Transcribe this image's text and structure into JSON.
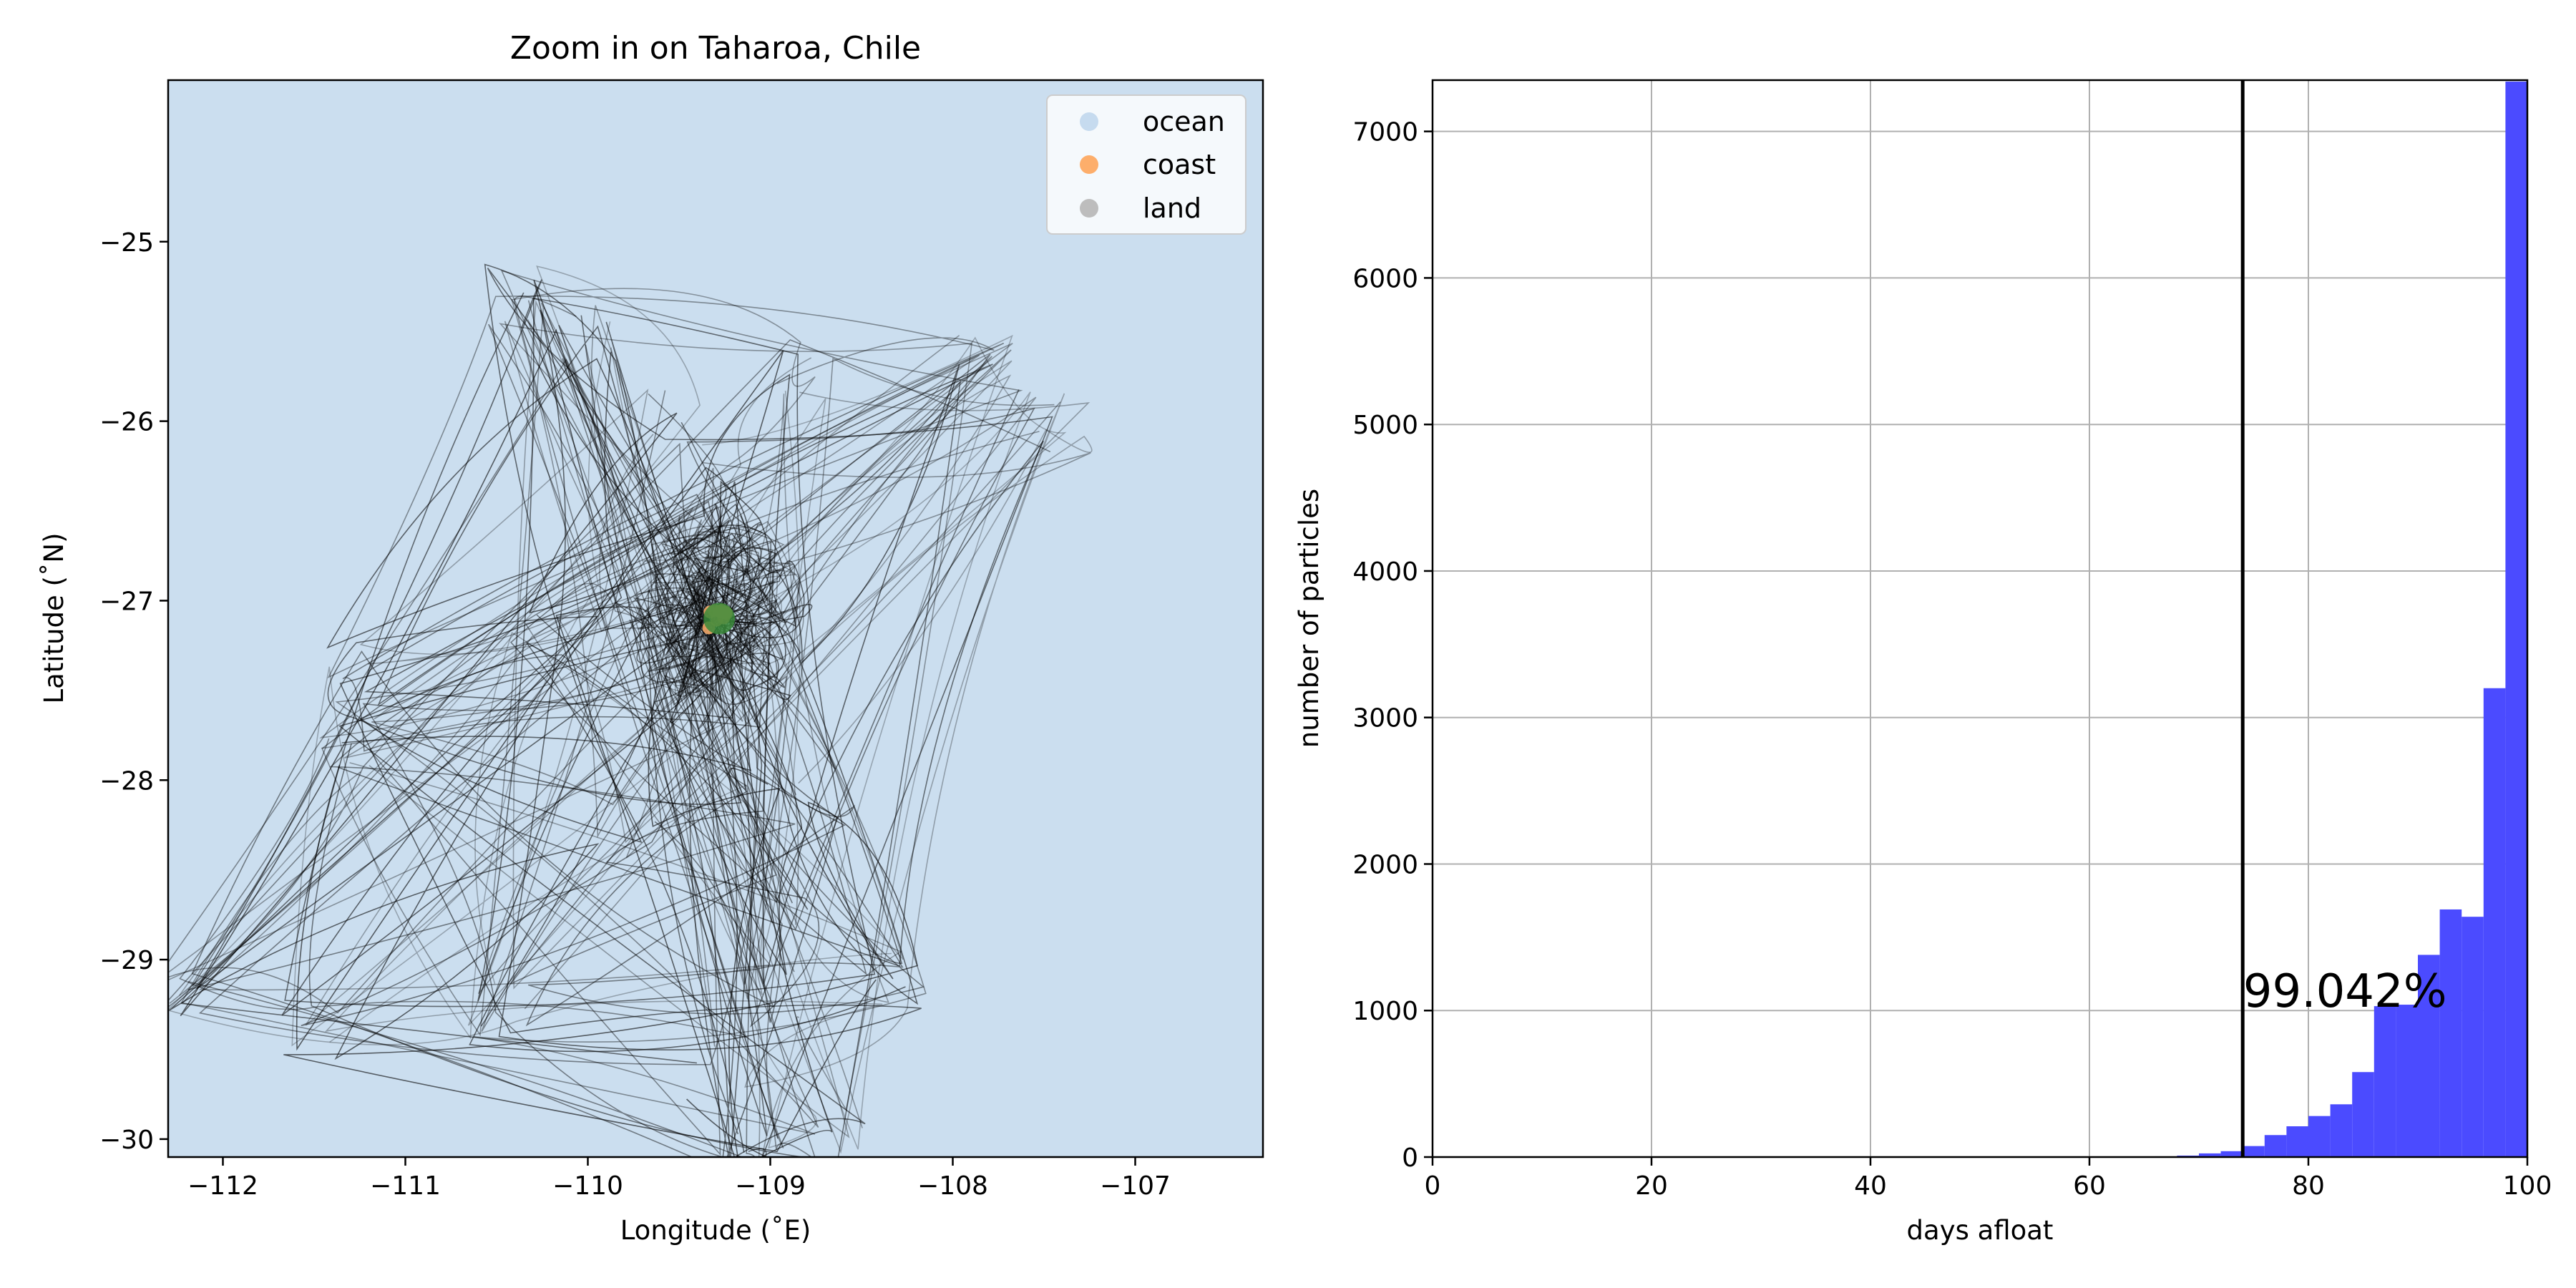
{
  "chart_data": [
    {
      "type": "scatter",
      "title": "Zoom in on Taharoa, Chile",
      "xlabel": "Longitude (˚E)",
      "ylabel": "Latitude (˚N)",
      "xlim": [
        -112.3,
        -106.3
      ],
      "ylim": [
        -30.1,
        -24.1
      ],
      "xticks": [
        -112,
        -111,
        -110,
        -109,
        -108,
        -107
      ],
      "yticks": [
        -25,
        -26,
        -27,
        -28,
        -29,
        -30
      ],
      "xtick_labels": [
        "−112",
        "−111",
        "−110",
        "−109",
        "−108",
        "−107"
      ],
      "ytick_labels": [
        "−25",
        "−26",
        "−27",
        "−28",
        "−29",
        "−30"
      ],
      "background": "#cbdeef",
      "legend": {
        "position": "top-right",
        "entries": [
          {
            "label": "ocean",
            "color": "#c6dbef"
          },
          {
            "label": "coast",
            "color": "#fdae6b"
          },
          {
            "label": "land",
            "color": "#bdbdbd"
          }
        ]
      },
      "release_point": {
        "lon": -109.28,
        "lat": -27.1,
        "color": "#3a8a3a"
      },
      "trajectory_color": "#000000"
    },
    {
      "type": "bar",
      "title": "",
      "xlabel": "days afloat",
      "ylabel": "number of particles",
      "xlim": [
        0,
        100
      ],
      "ylim": [
        0,
        7350
      ],
      "xticks": [
        0,
        20,
        40,
        60,
        80,
        100
      ],
      "yticks": [
        0,
        1000,
        2000,
        3000,
        4000,
        5000,
        6000,
        7000
      ],
      "grid": true,
      "bar_color": "#4b4bff",
      "bin_width": 2,
      "bins": [
        {
          "x": 66,
          "value": 5
        },
        {
          "x": 68,
          "value": 10
        },
        {
          "x": 70,
          "value": 25
        },
        {
          "x": 72,
          "value": 40
        },
        {
          "x": 74,
          "value": 75
        },
        {
          "x": 76,
          "value": 150
        },
        {
          "x": 78,
          "value": 210
        },
        {
          "x": 80,
          "value": 280
        },
        {
          "x": 82,
          "value": 360
        },
        {
          "x": 84,
          "value": 580
        },
        {
          "x": 86,
          "value": 1030
        },
        {
          "x": 88,
          "value": 1040
        },
        {
          "x": 90,
          "value": 1380
        },
        {
          "x": 92,
          "value": 1690
        },
        {
          "x": 94,
          "value": 1640
        },
        {
          "x": 96,
          "value": 3200
        },
        {
          "x": 98,
          "value": 7340
        }
      ],
      "vline": {
        "x": 74
      },
      "annotation": {
        "text": "99.042%",
        "x": 76,
        "y": 1000
      }
    }
  ]
}
